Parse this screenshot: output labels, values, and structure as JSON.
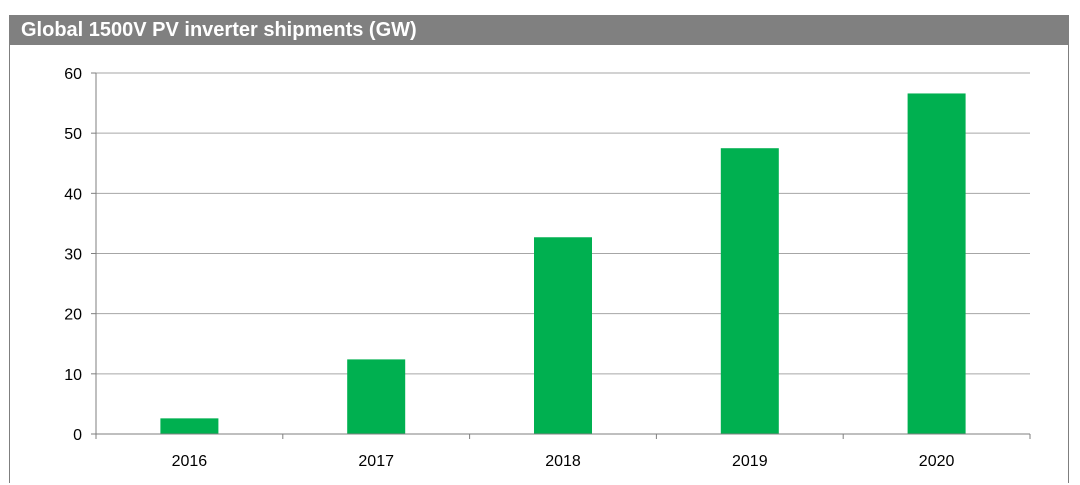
{
  "chart_data": {
    "type": "bar",
    "title": "Global 1500V PV inverter shipments (GW)",
    "categories": [
      "2016",
      "2017",
      "2018",
      "2019",
      "2020"
    ],
    "values": [
      2.6,
      12.4,
      32.7,
      47.5,
      56.6
    ],
    "ylim": [
      0,
      60
    ],
    "yticks": [
      0,
      10,
      20,
      30,
      40,
      50,
      60
    ],
    "grid": true,
    "legend": "none",
    "bar_color": "#00b050",
    "xlabel": "",
    "ylabel": ""
  },
  "colors": {
    "title_bar": "#808080",
    "title_text": "#ffffff",
    "gridline": "#a6a6a6",
    "axis": "#7f7f7f"
  }
}
